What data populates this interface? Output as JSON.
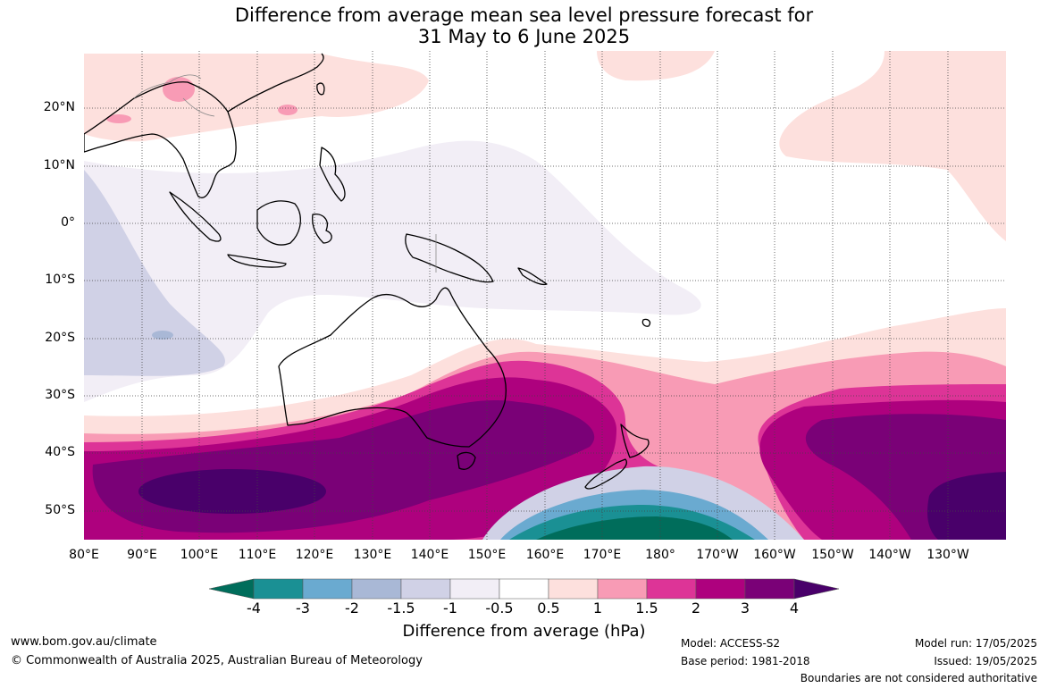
{
  "title": {
    "line1": "Difference from average mean sea level pressure forecast for",
    "line2": "31 May to 6 June 2025"
  },
  "map": {
    "lat_labels": [
      "20°N",
      "10°N",
      "0°",
      "10°S",
      "20°S",
      "30°S",
      "40°S",
      "50°S"
    ],
    "lon_labels": [
      "80°E",
      "90°E",
      "100°E",
      "110°E",
      "120°E",
      "130°E",
      "140°E",
      "150°E",
      "160°E",
      "170°E",
      "180°",
      "170°W",
      "160°W",
      "150°W",
      "140°W",
      "130°W"
    ]
  },
  "colorbar": {
    "labels": [
      "-4",
      "-3",
      "-2",
      "-1.5",
      "-1",
      "-0.5",
      "0.5",
      "1",
      "1.5",
      "2",
      "3",
      "4"
    ],
    "colors": [
      "#006d5b",
      "#1a9094",
      "#6aaad0",
      "#a9b8d6",
      "#d0d1e6",
      "#f2eef6",
      "#ffffff",
      "#fde0dd",
      "#f89bb5",
      "#dd3497",
      "#ae017e",
      "#7a0177",
      "#49006a"
    ],
    "title": "Difference from average (hPa)"
  },
  "footer": {
    "website": "www.bom.gov.au/climate",
    "copyright": "© Commonwealth of Australia 2025, Australian Bureau of Meteorology",
    "model": "Model: ACCESS-S2",
    "base_period": "Base period: 1981-2018",
    "model_run": "Model run: 17/05/2025",
    "issued": "Issued: 19/05/2025",
    "disclaimer": "Boundaries are not considered authoritative"
  }
}
